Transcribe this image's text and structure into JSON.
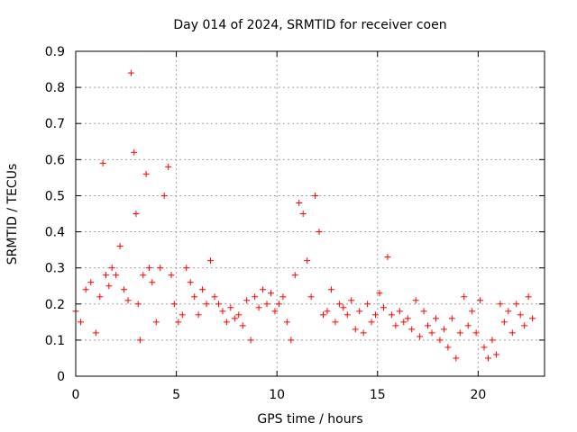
{
  "chart_data": {
    "type": "scatter",
    "title": "Day 014 of 2024, SRMTID for receiver coen",
    "xlabel": "GPS time / hours",
    "ylabel": "SRMTID / TECUs",
    "xlim": [
      0,
      23.3
    ],
    "ylim": [
      0,
      0.9
    ],
    "xticks": [
      0,
      5,
      10,
      15,
      20
    ],
    "xtick_labels": [
      "0",
      "5",
      "10",
      "15",
      "20"
    ],
    "yticks": [
      0,
      0.1,
      0.2,
      0.3,
      0.4,
      0.5,
      0.6,
      0.7,
      0.8,
      0.9
    ],
    "ytick_labels": [
      "0",
      "0.1",
      "0.2",
      "0.3",
      "0.4",
      "0.5",
      "0.6",
      "0.7",
      "0.8",
      "0.9"
    ],
    "grid": true,
    "marker": "+",
    "series": [
      {
        "name": "SRMTID",
        "color": "#ff0000",
        "x": [
          0.0,
          0.25,
          0.5,
          0.75,
          1.0,
          1.2,
          1.35,
          1.5,
          1.65,
          1.8,
          2.0,
          2.2,
          2.4,
          2.6,
          2.75,
          2.9,
          3.0,
          3.1,
          3.2,
          3.35,
          3.5,
          3.65,
          3.8,
          4.0,
          4.2,
          4.4,
          4.6,
          4.75,
          4.9,
          5.1,
          5.3,
          5.5,
          5.7,
          5.9,
          6.1,
          6.3,
          6.5,
          6.7,
          6.9,
          7.1,
          7.3,
          7.5,
          7.7,
          7.9,
          8.1,
          8.3,
          8.5,
          8.7,
          8.9,
          9.1,
          9.3,
          9.5,
          9.7,
          9.9,
          10.1,
          10.3,
          10.5,
          10.7,
          10.9,
          11.1,
          11.3,
          11.5,
          11.7,
          11.9,
          12.1,
          12.3,
          12.5,
          12.7,
          12.9,
          13.1,
          13.3,
          13.5,
          13.7,
          13.9,
          14.1,
          14.3,
          14.5,
          14.7,
          14.9,
          15.1,
          15.3,
          15.5,
          15.7,
          15.9,
          16.1,
          16.3,
          16.5,
          16.7,
          16.9,
          17.1,
          17.3,
          17.5,
          17.7,
          17.9,
          18.1,
          18.3,
          18.5,
          18.7,
          18.9,
          19.1,
          19.3,
          19.5,
          19.7,
          19.9,
          20.1,
          20.3,
          20.5,
          20.7,
          20.9,
          21.1,
          21.3,
          21.5,
          21.7,
          21.9,
          22.1,
          22.3,
          22.5,
          22.7
        ],
        "y": [
          0.18,
          0.15,
          0.24,
          0.26,
          0.12,
          0.22,
          0.59,
          0.28,
          0.25,
          0.3,
          0.28,
          0.36,
          0.24,
          0.21,
          0.84,
          0.62,
          0.45,
          0.2,
          0.1,
          0.28,
          0.56,
          0.3,
          0.26,
          0.15,
          0.3,
          0.5,
          0.58,
          0.28,
          0.2,
          0.15,
          0.17,
          0.3,
          0.26,
          0.22,
          0.17,
          0.24,
          0.2,
          0.32,
          0.22,
          0.2,
          0.18,
          0.15,
          0.19,
          0.16,
          0.17,
          0.14,
          0.21,
          0.1,
          0.22,
          0.19,
          0.24,
          0.2,
          0.23,
          0.18,
          0.2,
          0.22,
          0.15,
          0.1,
          0.28,
          0.48,
          0.45,
          0.32,
          0.22,
          0.5,
          0.4,
          0.17,
          0.18,
          0.24,
          0.15,
          0.2,
          0.19,
          0.17,
          0.21,
          0.13,
          0.18,
          0.12,
          0.2,
          0.15,
          0.17,
          0.23,
          0.19,
          0.33,
          0.17,
          0.14,
          0.18,
          0.15,
          0.16,
          0.13,
          0.21,
          0.11,
          0.18,
          0.14,
          0.12,
          0.16,
          0.1,
          0.13,
          0.08,
          0.16,
          0.05,
          0.12,
          0.22,
          0.14,
          0.18,
          0.12,
          0.21,
          0.08,
          0.05,
          0.1,
          0.06,
          0.2,
          0.15,
          0.18,
          0.12,
          0.2,
          0.17,
          0.14,
          0.22,
          0.16
        ]
      }
    ]
  }
}
